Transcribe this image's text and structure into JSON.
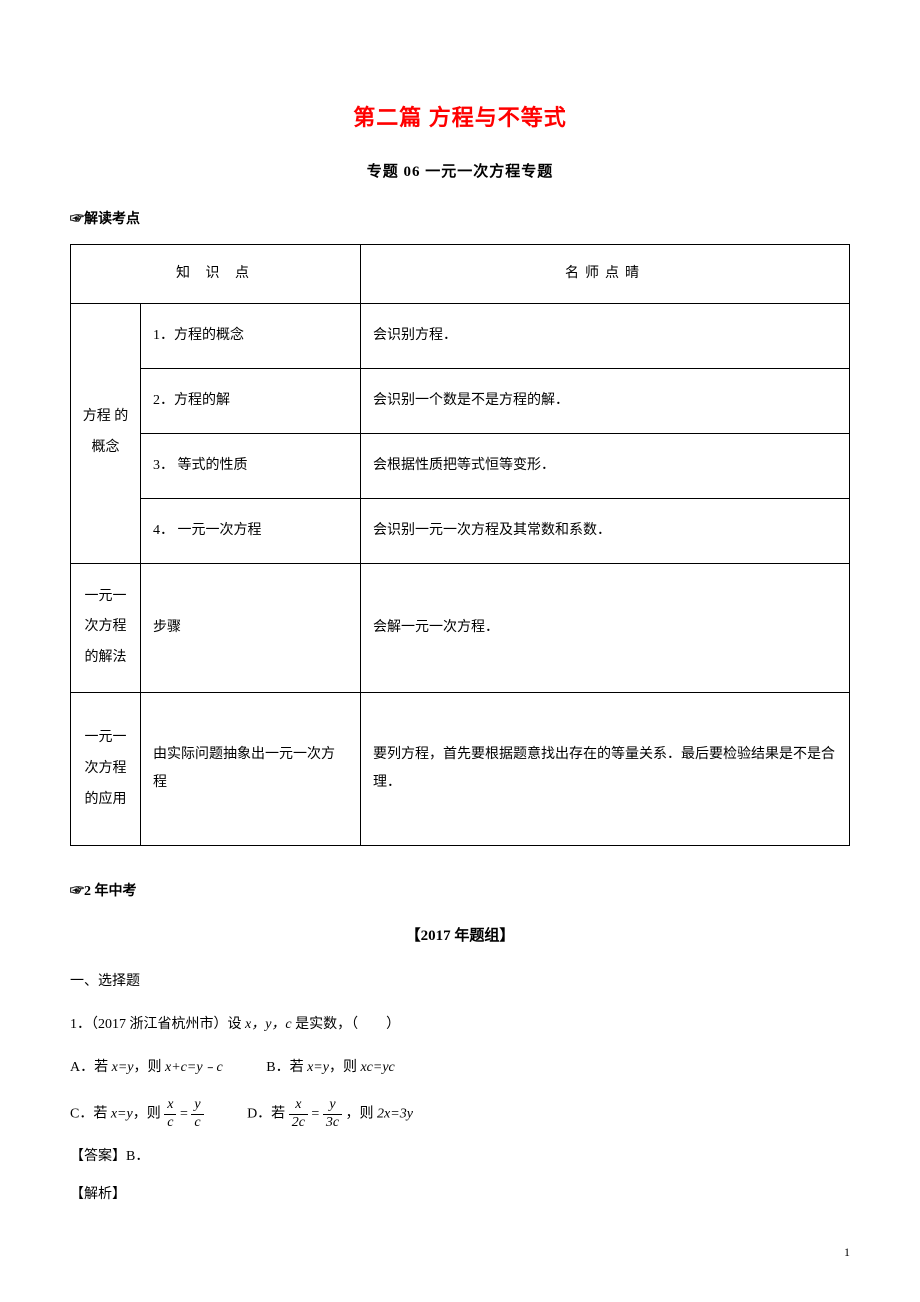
{
  "title": "第二篇  方程与不等式",
  "subtitle": "专题 06    一元一次方程专题",
  "section1_label": "☞解读考点",
  "table": {
    "header_col1": "知 识 点",
    "header_col2": "名师点晴",
    "group1_label": "方程 的概念",
    "group1_rows": [
      {
        "k": "1．方程的概念",
        "v": "会识别方程．"
      },
      {
        "k": "2．方程的解",
        "v": "会识别一个数是不是方程的解．"
      },
      {
        "k": "3．  等式的性质",
        "v": "会根据性质把等式恒等变形．"
      },
      {
        "k": "4．  一元一次方程",
        "v": "会识别一元一次方程及其常数和系数．"
      }
    ],
    "group2_label": "一元一次方程的解法",
    "group2_row": {
      "k": "步骤",
      "v": "会解一元一次方程．"
    },
    "group3_label": "一元一次方程的应用",
    "group3_row": {
      "k": "由实际问题抽象出一元一次方程",
      "v": "要列方程，首先要根据题意找出存在的等量关系．最后要检验结果是不是合理．"
    }
  },
  "section2_label": "☞2 年中考",
  "year_group": "【2017 年题组】",
  "q_section": "一、选择题",
  "q1_text": "1．（2017 浙江省杭州市）设 ",
  "q1_vars": "x，y，c",
  "q1_tail": " 是实数，（　　）",
  "optA_pre": "A．若 ",
  "optA_cond": "x=y",
  "optA_mid": "，则 ",
  "optA_res": "x+c=y﹣c",
  "optB_pre": "B．若 ",
  "optB_cond": "x=y",
  "optB_mid": "，则 ",
  "optB_res": "xc=yc",
  "optC_pre": "C．若 ",
  "optC_cond": "x=y",
  "optC_mid": "，则",
  "optD_pre": "D．若",
  "optD_mid": "，则 ",
  "optD_res": "2x=3y",
  "frac_x": "x",
  "frac_c": "c",
  "frac_y": "y",
  "frac_2c": "2c",
  "frac_3c": "3c",
  "eq_sign": "=",
  "answer_label": "【答案】B．",
  "analysis_label": "【解析】",
  "page_num": "1",
  "colors": {
    "title_color": "#ff0000",
    "text_color": "#000000",
    "background": "#ffffff",
    "border": "#000000"
  }
}
